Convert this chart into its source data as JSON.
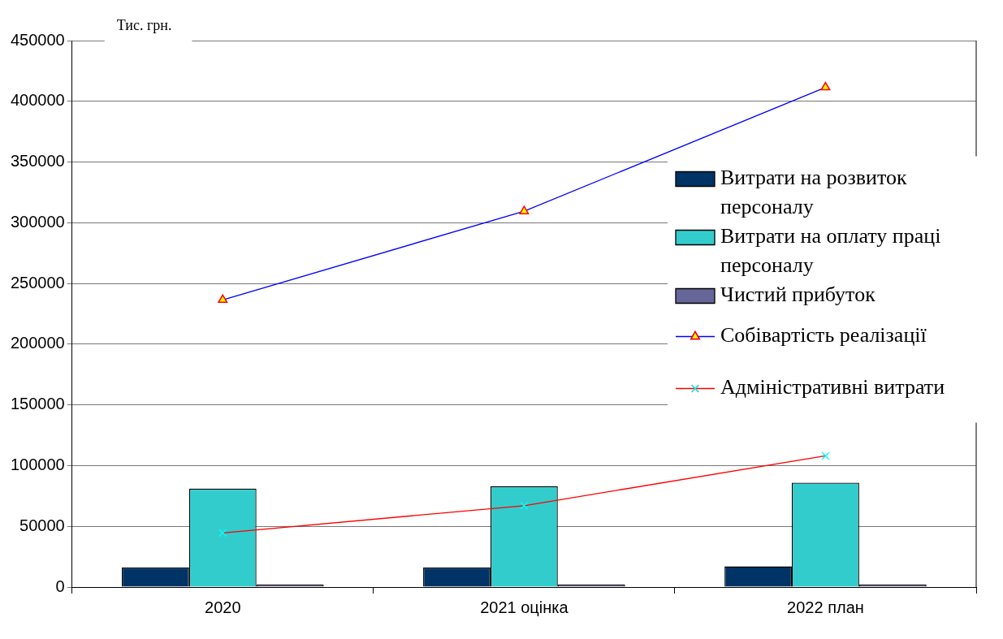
{
  "chart_data": {
    "type": "bar",
    "ylabel": "Тис. грн.",
    "categories": [
      "2020",
      "2021 оцінка",
      "2022 план"
    ],
    "series": [
      {
        "name": "Витрати на розвиток персоналу",
        "color": "#003366",
        "values": [
          16000,
          16000,
          17000
        ]
      },
      {
        "name": "Витрати на оплату праці персоналу",
        "color": "#33cccc",
        "values": [
          81000,
          83000,
          86000
        ]
      },
      {
        "name": "Чистий прибуток",
        "color": "#666699",
        "values": [
          2000,
          2000,
          2000
        ]
      },
      {
        "name": "Собівартість реалізації",
        "type": "line",
        "color": "#0000ff",
        "marker": "triangle",
        "values": [
          236500,
          309500,
          411500
        ]
      },
      {
        "name": "Адміністративні витрати",
        "type": "line",
        "color": "#ff0000",
        "marker": "cross",
        "values": [
          44600,
          67000,
          108000
        ]
      }
    ],
    "ylim": [
      0,
      450000
    ],
    "yticks": [
      0,
      50000,
      100000,
      150000,
      200000,
      250000,
      300000,
      350000,
      400000,
      450000
    ],
    "grid": "y",
    "legend": "right"
  }
}
